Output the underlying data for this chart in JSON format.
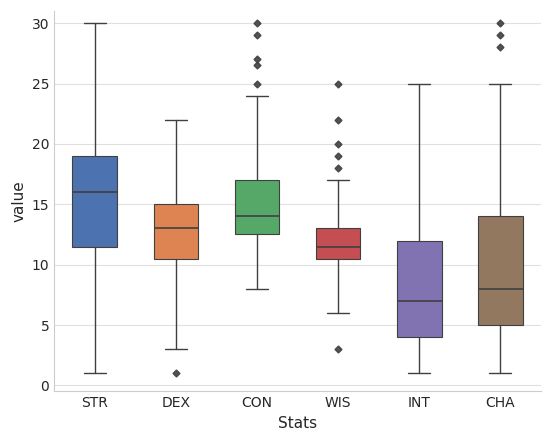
{
  "categories": [
    "STR",
    "DEX",
    "CON",
    "WIS",
    "INT",
    "CHA"
  ],
  "colors": [
    "#4c72b0",
    "#dd8452",
    "#55a868",
    "#c44e52",
    "#8172b2",
    "#937860"
  ],
  "xlabel": "Stats",
  "ylabel": "value",
  "ylim": [
    -0.5,
    31
  ],
  "yticks": [
    0,
    5,
    10,
    15,
    20,
    25,
    30
  ],
  "box_data": {
    "STR": {
      "whislo": 1,
      "q1": 11.5,
      "med": 16.0,
      "q3": 19.0,
      "whishi": 30,
      "fliers": []
    },
    "DEX": {
      "whislo": 3.0,
      "q1": 10.5,
      "med": 13.0,
      "q3": 15.0,
      "whishi": 22,
      "fliers": [
        1.0
      ]
    },
    "CON": {
      "whislo": 8,
      "q1": 12.5,
      "med": 14.0,
      "q3": 17.0,
      "whishi": 24,
      "fliers": [
        25.0,
        26.5,
        27.0,
        29.0,
        30.0
      ]
    },
    "WIS": {
      "whislo": 6,
      "q1": 10.5,
      "med": 11.5,
      "q3": 13.0,
      "whishi": 17,
      "fliers": [
        3.0,
        18.0,
        19.0,
        20.0,
        22.0,
        25.0
      ]
    },
    "INT": {
      "whislo": 1,
      "q1": 4.0,
      "med": 7.0,
      "q3": 12.0,
      "whishi": 25,
      "fliers": []
    },
    "CHA": {
      "whislo": 1,
      "q1": 5.0,
      "med": 8.0,
      "q3": 14.0,
      "whishi": 25,
      "fliers": [
        28.0,
        29.0,
        30.0
      ]
    }
  },
  "flier_color": "#404040",
  "whisker_color": "#404040",
  "median_color": "#404040",
  "box_edge_color": "#404040",
  "grid_color": "#e0e0e0",
  "figsize": [
    5.52,
    4.42
  ],
  "dpi": 100
}
